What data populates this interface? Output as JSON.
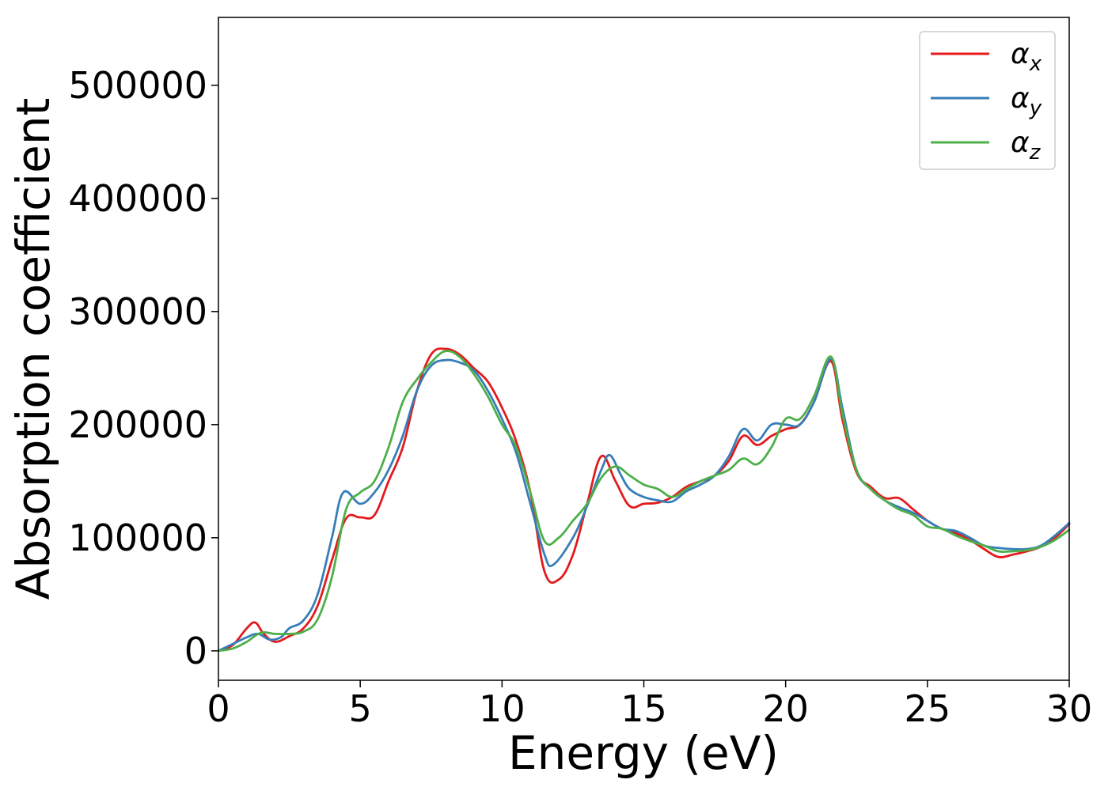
{
  "chart_data": {
    "type": "line",
    "xlabel": "Energy (eV)",
    "ylabel": "Absorption coefficient",
    "xlim": [
      0,
      30
    ],
    "ylim": [
      -26000,
      560000
    ],
    "x_ticks": [
      0,
      5,
      10,
      15,
      20,
      25,
      30
    ],
    "x_tick_labels": [
      "0",
      "5",
      "10",
      "15",
      "20",
      "25",
      "30"
    ],
    "y_ticks": [
      0,
      100000,
      200000,
      300000,
      400000,
      500000
    ],
    "y_tick_labels": [
      "0",
      "100000",
      "200000",
      "300000",
      "400000",
      "500000"
    ],
    "grid": false,
    "legend_position": "top-right",
    "series": [
      {
        "name": "αx",
        "label_main": "α",
        "label_sub": "x",
        "color": "#e41a1c",
        "x": [
          0,
          0.5,
          1.0,
          1.3,
          1.6,
          2.0,
          2.5,
          3.0,
          3.5,
          4.0,
          4.5,
          5.0,
          5.5,
          6.0,
          6.5,
          7.0,
          7.5,
          8.0,
          8.5,
          9.0,
          9.5,
          10.0,
          10.5,
          11.0,
          11.5,
          12.0,
          12.5,
          13.0,
          13.5,
          14.0,
          14.5,
          15.0,
          15.5,
          16.0,
          16.5,
          17.0,
          17.5,
          18.0,
          18.5,
          19.0,
          19.5,
          20.0,
          20.5,
          21.0,
          21.6,
          22.0,
          22.5,
          23.0,
          23.5,
          24.0,
          24.5,
          25.0,
          25.5,
          26.0,
          26.5,
          27.0,
          27.5,
          28.0,
          28.5,
          29.0,
          29.5,
          30.0
        ],
        "values": [
          0,
          5000,
          20000,
          25000,
          15000,
          8000,
          13000,
          20000,
          40000,
          80000,
          117000,
          118000,
          120000,
          150000,
          180000,
          230000,
          262000,
          267000,
          262000,
          250000,
          238000,
          215000,
          185000,
          140000,
          70000,
          63000,
          85000,
          130000,
          172000,
          150000,
          128000,
          130000,
          131000,
          136000,
          145000,
          150000,
          155000,
          168000,
          190000,
          182000,
          190000,
          196000,
          200000,
          220000,
          256000,
          205000,
          158000,
          145000,
          135000,
          135000,
          125000,
          115000,
          108000,
          104000,
          98000,
          90000,
          83000,
          85000,
          88000,
          92000,
          100000,
          112000
        ]
      },
      {
        "name": "αy",
        "label_main": "α",
        "label_sub": "y",
        "color": "#377eb8",
        "x": [
          0,
          0.5,
          1.0,
          1.4,
          1.8,
          2.2,
          2.5,
          3.0,
          3.5,
          4.0,
          4.4,
          5.0,
          5.5,
          6.0,
          6.5,
          7.0,
          7.5,
          8.0,
          8.5,
          9.0,
          9.5,
          10.0,
          10.5,
          11.0,
          11.5,
          11.8,
          12.5,
          13.0,
          13.5,
          13.8,
          14.2,
          14.5,
          15.0,
          15.5,
          16.0,
          16.5,
          17.0,
          17.5,
          18.0,
          18.5,
          19.0,
          19.5,
          20.0,
          20.5,
          21.0,
          21.6,
          22.0,
          22.5,
          23.0,
          23.5,
          24.0,
          24.5,
          25.0,
          25.5,
          26.0,
          26.5,
          27.0,
          27.5,
          28.0,
          28.5,
          29.0,
          29.5,
          30.0
        ],
        "values": [
          0,
          6000,
          12000,
          15000,
          10000,
          12000,
          20000,
          27000,
          50000,
          100000,
          140000,
          130000,
          140000,
          160000,
          190000,
          230000,
          252000,
          257000,
          255000,
          248000,
          230000,
          205000,
          175000,
          130000,
          85000,
          76000,
          100000,
          128000,
          160000,
          173000,
          155000,
          143000,
          136000,
          133000,
          132000,
          141000,
          147000,
          155000,
          172000,
          196000,
          186000,
          200000,
          200000,
          200000,
          220000,
          258000,
          215000,
          160000,
          143000,
          133000,
          127000,
          122000,
          115000,
          108000,
          106000,
          100000,
          93000,
          91000,
          90000,
          90000,
          93000,
          102000,
          113000
        ]
      },
      {
        "name": "αz",
        "label_main": "α",
        "label_sub": "z",
        "color": "#4daf4a",
        "x": [
          0,
          0.5,
          1.0,
          1.5,
          2.0,
          2.5,
          3.0,
          3.5,
          4.0,
          4.5,
          5.0,
          5.5,
          6.0,
          6.5,
          7.0,
          7.5,
          8.0,
          8.5,
          9.0,
          9.5,
          10.0,
          10.5,
          11.0,
          11.5,
          12.0,
          12.5,
          13.0,
          13.5,
          14.0,
          14.5,
          15.0,
          15.5,
          16.0,
          16.5,
          17.0,
          17.5,
          18.0,
          18.5,
          19.0,
          19.5,
          20.0,
          20.5,
          21.0,
          21.6,
          22.0,
          22.5,
          23.0,
          23.5,
          24.0,
          24.5,
          25.0,
          25.5,
          26.0,
          26.5,
          27.0,
          27.5,
          28.0,
          28.5,
          29.0,
          29.5,
          30.0
        ],
        "values": [
          0,
          2000,
          8000,
          16000,
          15000,
          15000,
          17000,
          28000,
          65000,
          125000,
          140000,
          150000,
          180000,
          220000,
          240000,
          255000,
          265000,
          260000,
          245000,
          225000,
          200000,
          180000,
          140000,
          97000,
          100000,
          115000,
          130000,
          153000,
          163000,
          155000,
          147000,
          143000,
          136000,
          143000,
          150000,
          155000,
          160000,
          170000,
          165000,
          180000,
          205000,
          205000,
          225000,
          260000,
          210000,
          160000,
          143000,
          133000,
          125000,
          120000,
          110000,
          108000,
          102000,
          97000,
          93000,
          88000,
          88000,
          89000,
          92000,
          98000,
          107000
        ]
      }
    ]
  }
}
